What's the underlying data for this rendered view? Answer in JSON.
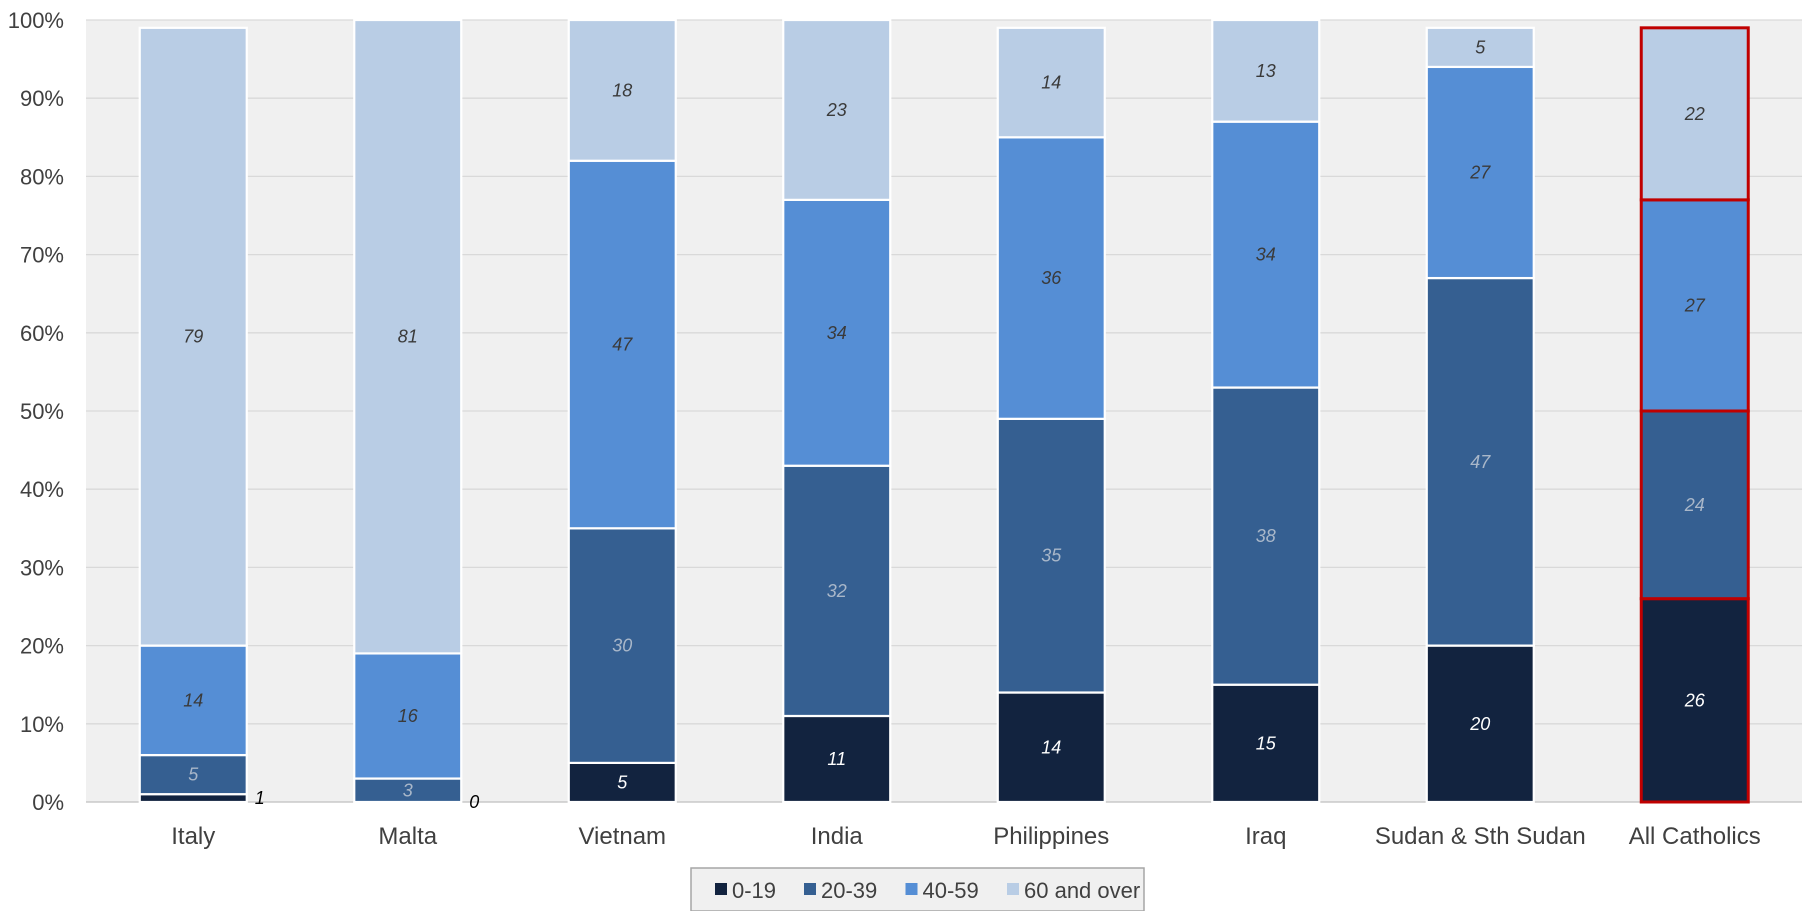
{
  "chart_data": {
    "type": "bar",
    "stacked": true,
    "percent_scale": true,
    "categories": [
      "Italy",
      "Malta",
      "Vietnam",
      "India",
      "Philippines",
      "Iraq",
      "Sudan & Sth Sudan",
      "All Catholics"
    ],
    "series": [
      {
        "name": "0-19",
        "values": [
          1,
          0,
          5,
          11,
          14,
          15,
          20,
          26
        ],
        "color": "#12233f",
        "label_color": "#ffffff"
      },
      {
        "name": "20-39",
        "values": [
          5,
          3,
          30,
          32,
          35,
          38,
          47,
          24
        ],
        "color": "#355f91",
        "label_color": "#a9b7c9"
      },
      {
        "name": "40-59",
        "values": [
          14,
          16,
          47,
          34,
          36,
          34,
          27,
          27
        ],
        "color": "#558ed5",
        "label_color": "#3a3a3a"
      },
      {
        "name": "60 and over",
        "values": [
          79,
          81,
          18,
          23,
          14,
          13,
          5,
          22
        ],
        "color": "#b9cde5",
        "label_color": "#3a3a3a"
      }
    ],
    "yticks": [
      "0%",
      "10%",
      "20%",
      "30%",
      "40%",
      "50%",
      "60%",
      "70%",
      "80%",
      "90%",
      "100%"
    ],
    "ylim": [
      0,
      100
    ],
    "grid": true,
    "legend_position": "bottom",
    "highlighted_category": "All Catholics",
    "highlight_color": "#c00000",
    "plot_background": "#f0f0f0",
    "gridline_color": "#d9d9d9"
  }
}
